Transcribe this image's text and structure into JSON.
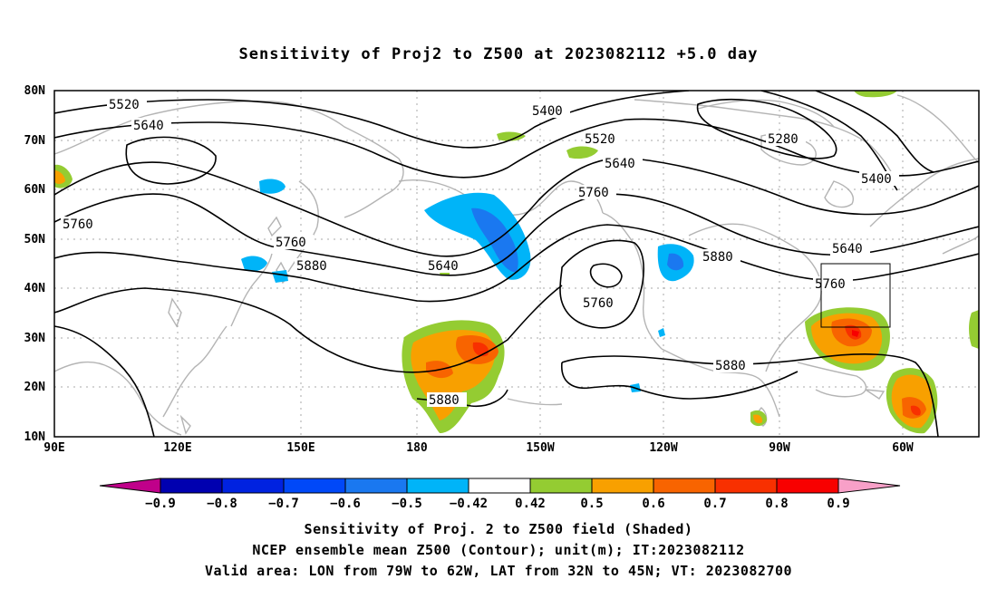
{
  "title": "Sensitivity of Proj2 to Z500 at 2023082112 +5.0 day",
  "lat_labels": [
    "80N",
    "70N",
    "60N",
    "50N",
    "40N",
    "30N",
    "20N",
    "10N"
  ],
  "lon_labels": [
    "90E",
    "120E",
    "150E",
    "180",
    "150W",
    "120W",
    "90W",
    "60W"
  ],
  "contour_labels": [
    {
      "text": "5520"
    },
    {
      "text": "5640"
    },
    {
      "text": "5760"
    },
    {
      "text": "5400"
    },
    {
      "text": "5520"
    },
    {
      "text": "5640"
    },
    {
      "text": "5760"
    },
    {
      "text": "5280"
    },
    {
      "text": "5400"
    },
    {
      "text": "5640"
    },
    {
      "text": "5760"
    },
    {
      "text": "5880"
    },
    {
      "text": "5760"
    },
    {
      "text": "5880"
    },
    {
      "text": "5640"
    },
    {
      "text": "5760"
    },
    {
      "text": "5880"
    },
    {
      "text": "5880"
    }
  ],
  "colorbar": {
    "labels": [
      "-0.9",
      "-0.8",
      "-0.7",
      "-0.6",
      "-0.5",
      "-0.42",
      "0.42",
      "0.5",
      "0.6",
      "0.7",
      "0.8",
      "0.9"
    ],
    "colors": [
      "#c0008a",
      "#0000b0",
      "#0022e0",
      "#0048f8",
      "#1a78f0",
      "#00b4f8",
      "#ffffff",
      "#94cc32",
      "#f8a000",
      "#f86400",
      "#f83000",
      "#f80000",
      "#f8a0c8"
    ]
  },
  "valid_area": {
    "lon": [
      -79,
      -62
    ],
    "lat": [
      32,
      45
    ]
  },
  "footer": {
    "line1": "Sensitivity of Proj. 2 to Z500 field (Shaded)",
    "line2": "NCEP ensemble mean Z500 (Contour); unit(m); IT:2023082112",
    "line3": "Valid area: LON from 79W to 62W, LAT from 32N to 45N; VT: 2023082700"
  }
}
